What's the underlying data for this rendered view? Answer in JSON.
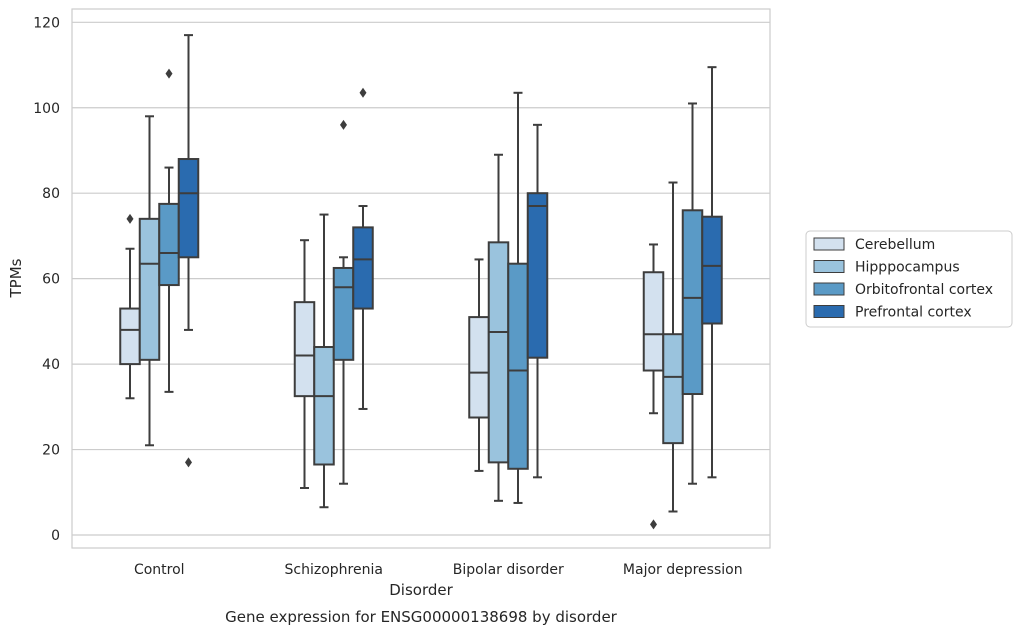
{
  "chart_data": {
    "type": "box",
    "title": "Gene expression for ENSG00000138698 by disorder",
    "xlabel": "Disorder",
    "ylabel": "TPMs",
    "ylim": [
      -3,
      123
    ],
    "yticks": [
      0,
      20,
      40,
      60,
      80,
      100,
      120
    ],
    "grid": true,
    "legend_position": "right",
    "categories": [
      "Control",
      "Schizophrenia",
      "Bipolar disorder",
      "Major depression"
    ],
    "series": [
      {
        "name": "Cerebellum",
        "color": "#d3e1ef",
        "boxes": [
          {
            "whislo": 32,
            "q1": 40,
            "med": 48,
            "q3": 53,
            "whishi": 67,
            "fliers": [
              74
            ]
          },
          {
            "whislo": 11,
            "q1": 32.5,
            "med": 42,
            "q3": 54.5,
            "whishi": 69,
            "fliers": []
          },
          {
            "whislo": 15,
            "q1": 27.5,
            "med": 38,
            "q3": 51,
            "whishi": 64.5,
            "fliers": []
          },
          {
            "whislo": 28.5,
            "q1": 38.5,
            "med": 47,
            "q3": 61.5,
            "whishi": 68,
            "fliers": [
              2.5
            ]
          }
        ]
      },
      {
        "name": "Hipppocampus",
        "color": "#9ac3dd",
        "boxes": [
          {
            "whislo": 21,
            "q1": 41,
            "med": 63.5,
            "q3": 74,
            "whishi": 98,
            "fliers": []
          },
          {
            "whislo": 6.5,
            "q1": 16.5,
            "med": 32.5,
            "q3": 44,
            "whishi": 75,
            "fliers": []
          },
          {
            "whislo": 8,
            "q1": 17,
            "med": 47.5,
            "q3": 68.5,
            "whishi": 89,
            "fliers": []
          },
          {
            "whislo": 5.5,
            "q1": 21.5,
            "med": 37,
            "q3": 47,
            "whishi": 82.5,
            "fliers": []
          }
        ]
      },
      {
        "name": "Orbitofrontal cortex",
        "color": "#5a9ac6",
        "boxes": [
          {
            "whislo": 33.5,
            "q1": 58.5,
            "med": 66,
            "q3": 77.5,
            "whishi": 86,
            "fliers": [
              108
            ]
          },
          {
            "whislo": 12,
            "q1": 41,
            "med": 58,
            "q3": 62.5,
            "whishi": 65,
            "fliers": [
              96
            ]
          },
          {
            "whislo": 7.5,
            "q1": 15.5,
            "med": 38.5,
            "q3": 63.5,
            "whishi": 103.5,
            "fliers": []
          },
          {
            "whislo": 12,
            "q1": 33,
            "med": 55.5,
            "q3": 76,
            "whishi": 101,
            "fliers": []
          }
        ]
      },
      {
        "name": "Prefrontal cortex",
        "color": "#2a6baf",
        "boxes": [
          {
            "whislo": 48,
            "q1": 65,
            "med": 80,
            "q3": 88,
            "whishi": 117,
            "fliers": [
              17
            ]
          },
          {
            "whislo": 29.5,
            "q1": 53,
            "med": 64.5,
            "q3": 72,
            "whishi": 77,
            "fliers": [
              103.5
            ]
          },
          {
            "whislo": 13.5,
            "q1": 41.5,
            "med": 77,
            "q3": 80,
            "whishi": 96,
            "fliers": []
          },
          {
            "whislo": 13.5,
            "q1": 49.5,
            "med": 63,
            "q3": 74.5,
            "whishi": 109.5,
            "fliers": []
          }
        ]
      }
    ]
  }
}
